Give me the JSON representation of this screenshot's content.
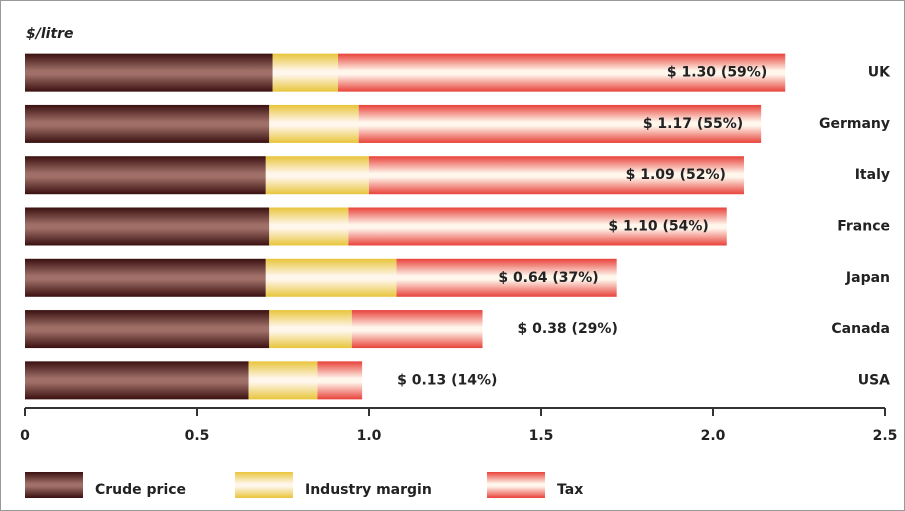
{
  "chart_data": {
    "type": "stacked_barh",
    "ylabel": "$/litre",
    "categories": [
      "UK",
      "Germany",
      "Italy",
      "France",
      "Japan",
      "Canada",
      "USA"
    ],
    "series": [
      {
        "name": "Crude price",
        "color": "#3a1010",
        "values": [
          0.72,
          0.71,
          0.7,
          0.71,
          0.7,
          0.71,
          0.65
        ]
      },
      {
        "name": "Industry margin",
        "color": "#e8c53a",
        "values": [
          0.19,
          0.26,
          0.3,
          0.23,
          0.38,
          0.24,
          0.2
        ]
      },
      {
        "name": "Tax",
        "color": "#e8423a",
        "values": [
          1.3,
          1.17,
          1.09,
          1.1,
          0.64,
          0.38,
          0.13
        ],
        "value_labels": [
          "$ 1.30 (59%)",
          "$ 1.17 (55%)",
          "$ 1.09 (52%)",
          "$ 1.10 (54%)",
          "$ 0.64 (37%)",
          "$ 0.38 (29%)",
          "$ 0.13 (14%)"
        ]
      }
    ],
    "xlim": [
      0,
      2.5
    ],
    "xticks": [
      0,
      0.5,
      {
        "value": 1,
        "label": "1.0"
      },
      1.5,
      {
        "value": 2,
        "label": "2.0"
      },
      2.5
    ],
    "legend": "bottom"
  }
}
